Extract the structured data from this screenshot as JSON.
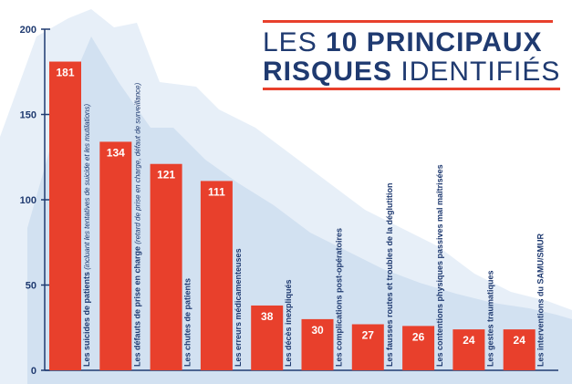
{
  "colors": {
    "bar": "#e8402c",
    "axis": "#1f3a70",
    "title": "#1f3a70",
    "accent": "#e8402c",
    "mountain_back": "#e7eff8",
    "mountain_front": "#d2e1f1",
    "bar_value_text": "#ffffff",
    "label_text": "#1f3a70"
  },
  "title": {
    "line1_prefix": "LES ",
    "line1_bold": "10 PRINCIPAUX",
    "line2_bold": "RISQUES",
    "line2_thin": " IDENTIFIÉS"
  },
  "chart_data": {
    "type": "bar",
    "title": "LES 10 PRINCIPAUX RISQUES IDENTIFIÉS",
    "xlabel": "",
    "ylabel": "",
    "ylim": [
      0,
      200
    ],
    "yticks": [
      0,
      50,
      100,
      150,
      200
    ],
    "grid": false,
    "categories": [
      {
        "label": "Les suicides de patients",
        "sublabel": "(incluant les tentatives de suicide et les mutilations)"
      },
      {
        "label": "Les défauts de prise en charge",
        "sublabel": "(retard de prise en charge, défaut de surveillance)"
      },
      {
        "label": "Les chutes de patients",
        "sublabel": ""
      },
      {
        "label": "Les erreurs médicamenteuses",
        "sublabel": ""
      },
      {
        "label": "Les décès inexpliqués",
        "sublabel": ""
      },
      {
        "label": "Les complications post-opératoires",
        "sublabel": ""
      },
      {
        "label": "Les fausses routes et troubles de la déglutition",
        "sublabel": ""
      },
      {
        "label": "Les contentions physiques passives mal maîtrisées",
        "sublabel": ""
      },
      {
        "label": "Les gestes traumatiques",
        "sublabel": ""
      },
      {
        "label": "Les interventions du SAMU/SMUR",
        "sublabel": ""
      }
    ],
    "values": [
      181,
      134,
      121,
      111,
      38,
      30,
      27,
      26,
      24,
      24
    ]
  }
}
